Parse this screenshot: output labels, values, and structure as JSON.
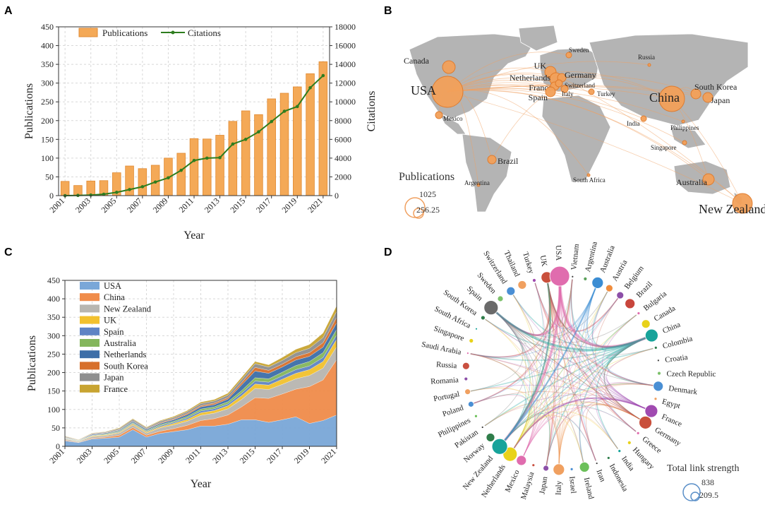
{
  "panels": {
    "a": "A",
    "b": "B",
    "c": "C",
    "d": "D"
  },
  "chart_data": [
    {
      "panel": "A",
      "type": "bar",
      "title": "",
      "xlabel": "Year",
      "ylabel": "Publications",
      "y2label": "Citations",
      "ylim": [
        0,
        450
      ],
      "y2lim": [
        0,
        18000
      ],
      "yticks": [
        "0",
        "50",
        "100",
        "150",
        "200",
        "250",
        "300",
        "350",
        "400",
        "450"
      ],
      "y2ticks": [
        "0",
        "2000",
        "4000",
        "6000",
        "8000",
        "10000",
        "12000",
        "14000",
        "16000",
        "18000"
      ],
      "x": [
        "2001",
        "2002",
        "2003",
        "2004",
        "2005",
        "2006",
        "2007",
        "2008",
        "2009",
        "2010",
        "2011",
        "2012",
        "2013",
        "2014",
        "2015",
        "2016",
        "2017",
        "2018",
        "2019",
        "2020",
        "2021"
      ],
      "xticklabels": [
        "2001",
        "2003",
        "2005",
        "2007",
        "2009",
        "2011",
        "2013",
        "2015",
        "2017",
        "2019",
        "2021"
      ],
      "series": [
        {
          "name": "Publications",
          "kind": "bar",
          "color": "#f4a957",
          "values": [
            38,
            27,
            39,
            40,
            61,
            79,
            72,
            81,
            100,
            113,
            152,
            151,
            161,
            198,
            226,
            216,
            258,
            273,
            290,
            325,
            357
          ]
        },
        {
          "name": "Citations",
          "kind": "line",
          "color": "#2e7d1e",
          "values": [
            0,
            20,
            60,
            150,
            350,
            650,
            950,
            1450,
            1900,
            2700,
            3750,
            4000,
            4050,
            5500,
            6000,
            6800,
            7900,
            9000,
            9500,
            11500,
            12800
          ]
        }
      ],
      "legend": [
        "Publications",
        "Citations"
      ]
    },
    {
      "panel": "B",
      "type": "other",
      "subtype": "map-collaboration",
      "legend_title": "Publications",
      "legend_values": [
        "1025",
        "256.25"
      ],
      "countries": [
        {
          "name": "Canada",
          "size": 9
        },
        {
          "name": "USA",
          "size": 22
        },
        {
          "name": "Mexico",
          "size": 5
        },
        {
          "name": "Brazil",
          "size": 6
        },
        {
          "name": "Argentina",
          "size": 2
        },
        {
          "name": "UK",
          "size": 8
        },
        {
          "name": "Netherlands",
          "size": 9
        },
        {
          "name": "Germany",
          "size": 6
        },
        {
          "name": "France",
          "size": 6
        },
        {
          "name": "Switzerland",
          "size": 5
        },
        {
          "name": "Spain",
          "size": 7
        },
        {
          "name": "Italy",
          "size": 5
        },
        {
          "name": "Sweden",
          "size": 4
        },
        {
          "name": "Russia",
          "size": 2
        },
        {
          "name": "Turkey",
          "size": 4
        },
        {
          "name": "South Africa",
          "size": 2
        },
        {
          "name": "China",
          "size": 18
        },
        {
          "name": "South Korea",
          "size": 7
        },
        {
          "name": "Japan",
          "size": 7
        },
        {
          "name": "India",
          "size": 4
        },
        {
          "name": "Philippines",
          "size": 2
        },
        {
          "name": "Singapore",
          "size": 3
        },
        {
          "name": "Australia",
          "size": 8
        },
        {
          "name": "New Zealand",
          "size": 14
        }
      ]
    },
    {
      "panel": "C",
      "type": "area",
      "stacked": true,
      "xlabel": "Year",
      "ylabel": "Publications",
      "ylim": [
        0,
        450
      ],
      "yticks": [
        "0",
        "50",
        "100",
        "150",
        "200",
        "250",
        "300",
        "350",
        "400",
        "450"
      ],
      "x": [
        "2001",
        "2002",
        "2003",
        "2004",
        "2005",
        "2006",
        "2007",
        "2008",
        "2009",
        "2010",
        "2011",
        "2012",
        "2013",
        "2014",
        "2015",
        "2016",
        "2017",
        "2018",
        "2019",
        "2020",
        "2021"
      ],
      "xticklabels": [
        "2001",
        "2003",
        "2005",
        "2007",
        "2009",
        "2011",
        "2013",
        "2015",
        "2017",
        "2019",
        "2021"
      ],
      "series": [
        {
          "name": "USA",
          "color": "#7aa7d8",
          "values": [
            15,
            10,
            20,
            22,
            25,
            45,
            25,
            35,
            40,
            45,
            55,
            55,
            60,
            72,
            72,
            65,
            72,
            80,
            62,
            70,
            85
          ]
        },
        {
          "name": "China",
          "color": "#f08c4a",
          "values": [
            2,
            1,
            2,
            3,
            5,
            6,
            5,
            6,
            8,
            12,
            15,
            20,
            25,
            35,
            60,
            65,
            70,
            75,
            100,
            110,
            150
          ]
        },
        {
          "name": "New Zealand",
          "color": "#b8b6b0",
          "values": [
            3,
            2,
            4,
            4,
            6,
            7,
            6,
            9,
            10,
            11,
            14,
            15,
            17,
            20,
            25,
            24,
            26,
            28,
            30,
            32,
            35
          ]
        },
        {
          "name": "UK",
          "color": "#f2c12e",
          "values": [
            1,
            1,
            2,
            2,
            2,
            3,
            3,
            3,
            4,
            5,
            7,
            7,
            8,
            10,
            12,
            12,
            14,
            15,
            16,
            18,
            20
          ]
        },
        {
          "name": "Spain",
          "color": "#5f84c4",
          "values": [
            1,
            0,
            1,
            1,
            2,
            2,
            2,
            3,
            3,
            4,
            5,
            5,
            5,
            7,
            8,
            8,
            9,
            10,
            10,
            11,
            12
          ]
        },
        {
          "name": "Australia",
          "color": "#84b65c",
          "values": [
            1,
            1,
            1,
            2,
            2,
            2,
            2,
            3,
            3,
            4,
            5,
            5,
            6,
            7,
            9,
            9,
            10,
            11,
            12,
            13,
            15
          ]
        },
        {
          "name": "Netherlands",
          "color": "#3d6ea8",
          "values": [
            1,
            1,
            2,
            2,
            2,
            3,
            3,
            3,
            4,
            5,
            6,
            6,
            7,
            15,
            18,
            15,
            14,
            15,
            14,
            15,
            18
          ]
        },
        {
          "name": "South Korea",
          "color": "#d7702c",
          "values": [
            1,
            0,
            1,
            1,
            1,
            1,
            1,
            2,
            2,
            3,
            3,
            4,
            4,
            6,
            10,
            8,
            8,
            9,
            10,
            12,
            15
          ]
        },
        {
          "name": "Japan",
          "color": "#8f8f8f",
          "values": [
            2,
            1,
            2,
            2,
            3,
            4,
            3,
            4,
            4,
            5,
            6,
            6,
            7,
            9,
            10,
            9,
            10,
            11,
            12,
            14,
            16
          ]
        },
        {
          "name": "France",
          "color": "#c8a431",
          "values": [
            1,
            1,
            1,
            1,
            2,
            2,
            2,
            2,
            3,
            3,
            4,
            4,
            5,
            6,
            6,
            6,
            8,
            9,
            10,
            12,
            15
          ]
        }
      ],
      "legend": [
        "USA",
        "China",
        "New Zealand",
        "UK",
        "Spain",
        "Australia",
        "Netherlands",
        "South Korea",
        "Japan",
        "France"
      ]
    },
    {
      "panel": "D",
      "type": "other",
      "subtype": "chord-network",
      "legend_title": "Total link strength",
      "legend_values": [
        "838",
        "209.5"
      ],
      "nodes": [
        {
          "name": "Vietnam",
          "color": "#3a3a3a",
          "size": 1.5
        },
        {
          "name": "Argentina",
          "color": "#5aa05a",
          "size": 2.5
        },
        {
          "name": "Australia",
          "color": "#3b8dd3",
          "size": 8
        },
        {
          "name": "Austria",
          "color": "#f08c3c",
          "size": 5
        },
        {
          "name": "Belgium",
          "color": "#8c4fa8",
          "size": 5
        },
        {
          "name": "Brazil",
          "color": "#c8463c",
          "size": 7
        },
        {
          "name": "Bulgaria",
          "color": "#e06cae",
          "size": 2
        },
        {
          "name": "Canada",
          "color": "#e8d21a",
          "size": 6
        },
        {
          "name": "China",
          "color": "#17a39a",
          "size": 9
        },
        {
          "name": "Colombia",
          "color": "#2f7d4a",
          "size": 2
        },
        {
          "name": "Croatia",
          "color": "#3a3a3a",
          "size": 1.5
        },
        {
          "name": "Czech Republic",
          "color": "#7cc06a",
          "size": 2.5
        },
        {
          "name": "Denmark",
          "color": "#4a8fd4",
          "size": 7
        },
        {
          "name": "Egypt",
          "color": "#f0a060",
          "size": 2
        },
        {
          "name": "France",
          "color": "#a04ab0",
          "size": 9
        },
        {
          "name": "Germany",
          "color": "#c9503c",
          "size": 9
        },
        {
          "name": "Greece",
          "color": "#e06cae",
          "size": 2
        },
        {
          "name": "Hungary",
          "color": "#e8d21a",
          "size": 2.5
        },
        {
          "name": "India",
          "color": "#17a39a",
          "size": 2
        },
        {
          "name": "Indonesia",
          "color": "#2f7d4a",
          "size": 2
        },
        {
          "name": "Iran",
          "color": "#3a3a3a",
          "size": 1.5
        },
        {
          "name": "Ireland",
          "color": "#6cc05a",
          "size": 7
        },
        {
          "name": "Israel",
          "color": "#4a8fd4",
          "size": 2
        },
        {
          "name": "Italy",
          "color": "#f0a060",
          "size": 8
        },
        {
          "name": "Japan",
          "color": "#8c4fa8",
          "size": 4
        },
        {
          "name": "Malaysia",
          "color": "#c95040",
          "size": 2
        },
        {
          "name": "Mexico",
          "color": "#e06cae",
          "size": 7
        },
        {
          "name": "Netherlands",
          "color": "#e8d21a",
          "size": 10
        },
        {
          "name": "New Zealand",
          "color": "#17a39a",
          "size": 11
        },
        {
          "name": "Norway",
          "color": "#2f7d4a",
          "size": 6
        },
        {
          "name": "Pakistan",
          "color": "#3a3a3a",
          "size": 1.5
        },
        {
          "name": "Philippines",
          "color": "#6cc05a",
          "size": 2
        },
        {
          "name": "Poland",
          "color": "#4a8fd4",
          "size": 4
        },
        {
          "name": "Portugal",
          "color": "#f0a060",
          "size": 4
        },
        {
          "name": "Romania",
          "color": "#8c4fa8",
          "size": 2.5
        },
        {
          "name": "Russia",
          "color": "#c95040",
          "size": 5
        },
        {
          "name": "Saudi Arabia",
          "color": "#e06cae",
          "size": 1.5
        },
        {
          "name": "Singapore",
          "color": "#e8d21a",
          "size": 3
        },
        {
          "name": "South Africa",
          "color": "#17a39a",
          "size": 1.5
        },
        {
          "name": "South Korea",
          "color": "#2f7d4a",
          "size": 3
        },
        {
          "name": "Spain",
          "color": "#6a6a6a",
          "size": 10
        },
        {
          "name": "Sweden",
          "color": "#7cc06a",
          "size": 4
        },
        {
          "name": "Switzerland",
          "color": "#4a8fd4",
          "size": 6
        },
        {
          "name": "Thailand",
          "color": "#f0a060",
          "size": 6
        },
        {
          "name": "Turkey",
          "color": "#a04ab0",
          "size": 2.5
        },
        {
          "name": "UK",
          "color": "#c9503c",
          "size": 8
        },
        {
          "name": "USA",
          "color": "#e06cae",
          "size": 14
        }
      ]
    }
  ]
}
